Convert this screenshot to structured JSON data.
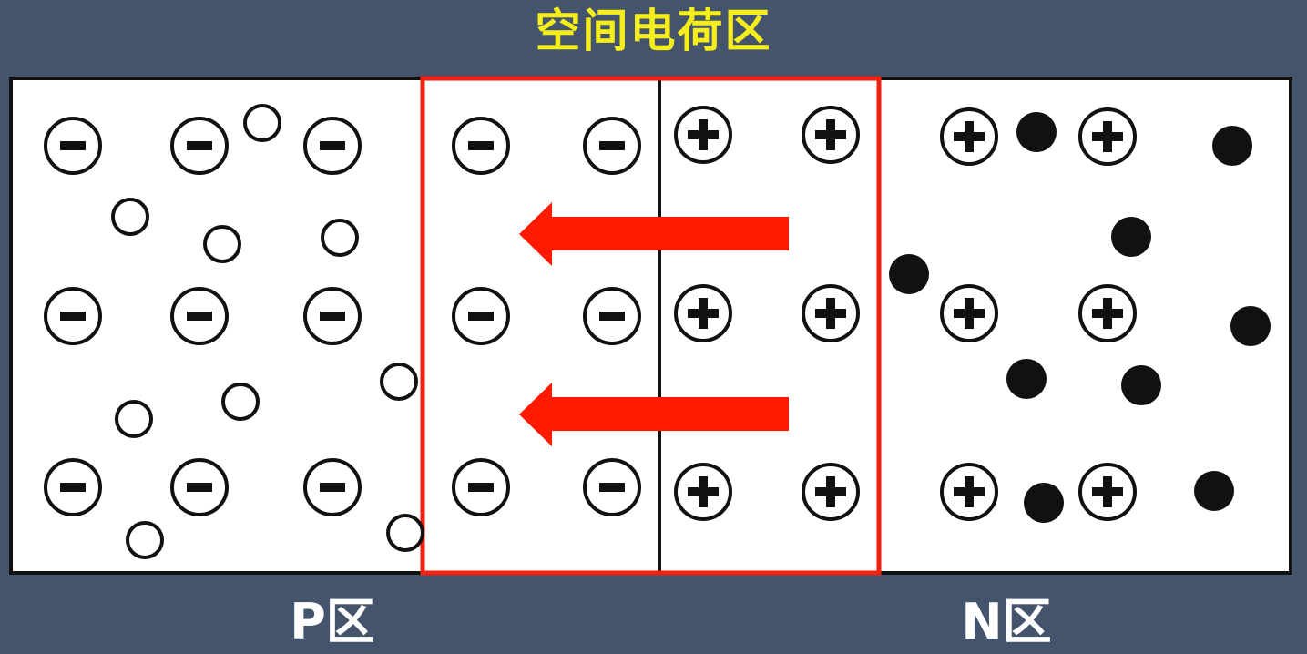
{
  "title": "空间电荷区",
  "labels": {
    "p_region": "P区",
    "n_region": "N区"
  },
  "colors": {
    "background": "#44546c",
    "title": "#f6ee1a",
    "box_border": "#111111",
    "space_charge_border": "#ee2211",
    "arrow": "#ff1a00",
    "particle": "#111111"
  },
  "legend_icons": {
    "acceptor_ion": "circled-minus-icon",
    "donor_ion": "circled-plus-icon",
    "hole": "hollow-circle-icon",
    "electron": "solid-circle-icon"
  }
}
